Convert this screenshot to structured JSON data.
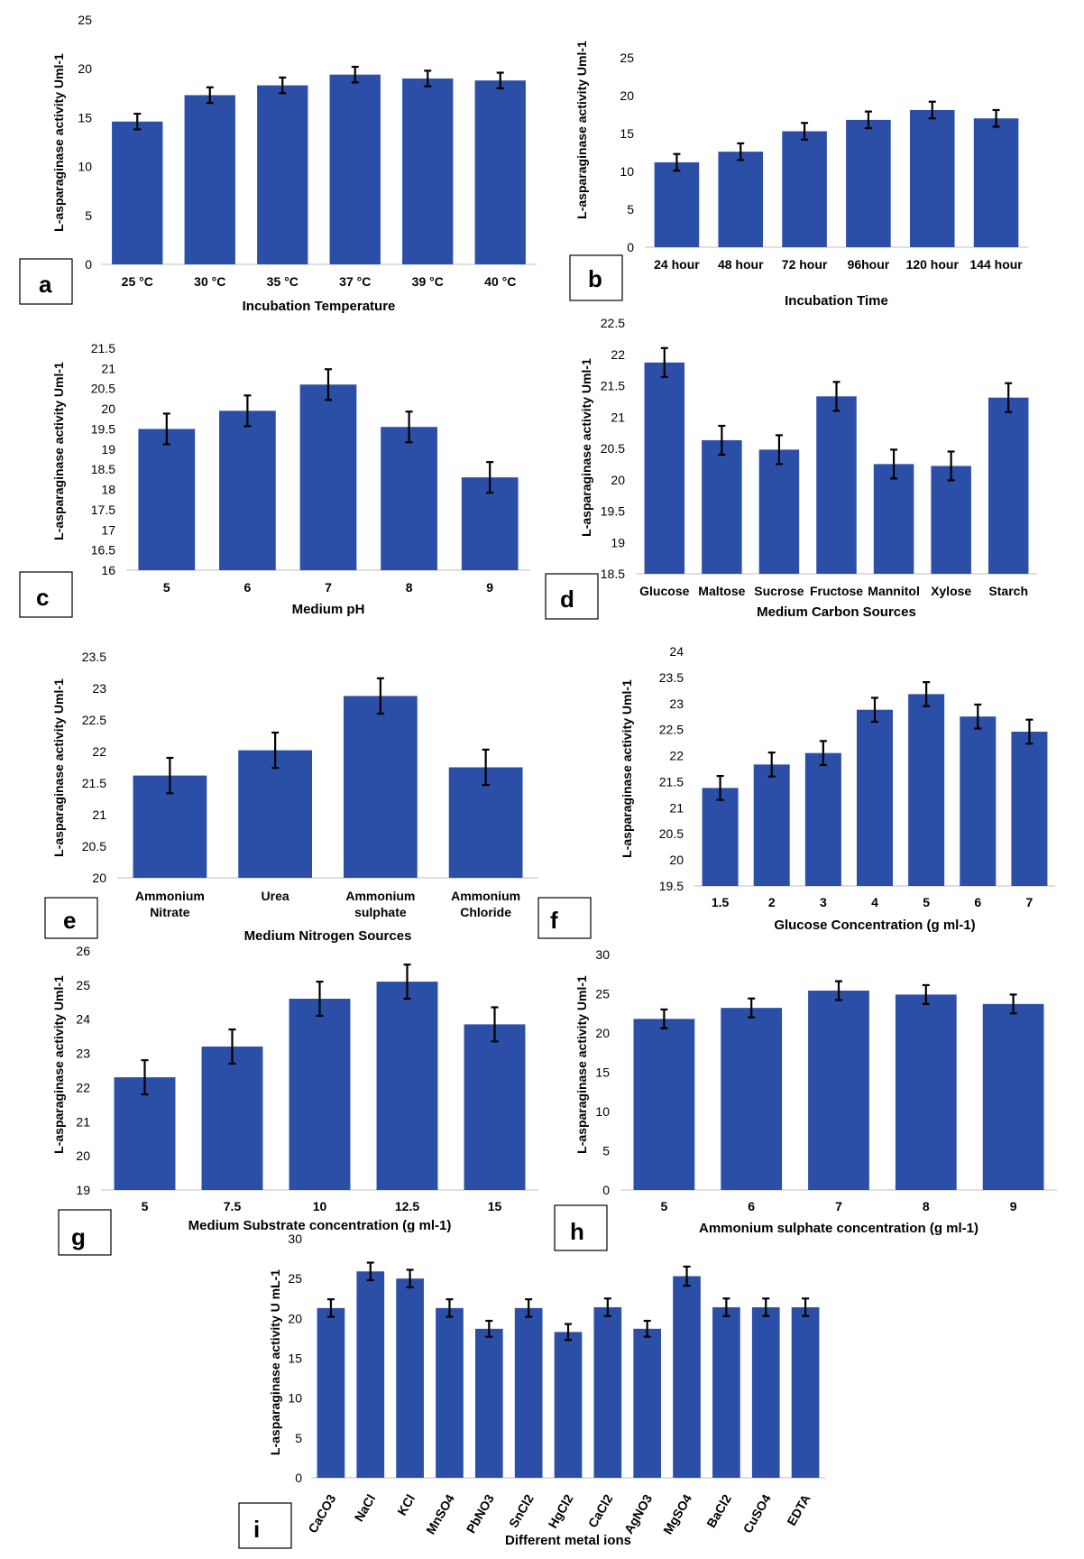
{
  "chart_data": [
    {
      "id": "a",
      "type": "bar",
      "panel_label": "a",
      "categories": [
        "25 °C",
        "30 °C",
        "35 °C",
        "37 °C",
        "39 °C",
        "40 °C"
      ],
      "values": [
        14.6,
        17.3,
        18.3,
        19.4,
        19.0,
        18.8
      ],
      "errors": [
        0.8,
        0.8,
        0.8,
        0.8,
        0.8,
        0.8
      ],
      "ylim": [
        0,
        25
      ],
      "yticks": [
        0,
        5,
        10,
        15,
        20,
        25
      ],
      "xlabel": "Incubation Temperature",
      "ylabel": "L-asparaginase activity Uml-1"
    },
    {
      "id": "b",
      "type": "bar",
      "panel_label": "b",
      "categories": [
        "24 hour",
        "48 hour",
        "72 hour",
        "96hour",
        "120 hour",
        "144 hour"
      ],
      "values": [
        11.2,
        12.6,
        15.3,
        16.8,
        18.1,
        17.0
      ],
      "errors": [
        1.1,
        1.1,
        1.1,
        1.1,
        1.1,
        1.1
      ],
      "ylim": [
        0,
        25
      ],
      "yticks": [
        0,
        5,
        10,
        15,
        20,
        25
      ],
      "xlabel": "Incubation Time",
      "ylabel": "L-asparaginase activity Uml-1"
    },
    {
      "id": "c",
      "type": "bar",
      "panel_label": "c",
      "categories": [
        "5",
        "6",
        "7",
        "8",
        "9"
      ],
      "values": [
        19.5,
        19.95,
        20.6,
        19.55,
        18.3
      ],
      "errors": [
        0.38,
        0.38,
        0.38,
        0.38,
        0.38
      ],
      "ylim": [
        16,
        21.5
      ],
      "yticks": [
        16,
        16.5,
        17,
        17.5,
        18,
        18.5,
        19,
        19.5,
        20,
        20.5,
        21,
        21.5
      ],
      "xlabel": "Medium pH",
      "ylabel": "L-asparaginase activity Uml-1"
    },
    {
      "id": "d",
      "type": "bar",
      "panel_label": "d",
      "categories": [
        "Glucose",
        "Maltose",
        "Sucrose",
        "Fructose",
        "Mannitol",
        "Xylose",
        "Starch"
      ],
      "values": [
        21.87,
        20.63,
        20.48,
        21.33,
        20.25,
        20.22,
        21.31
      ],
      "errors": [
        0.23,
        0.23,
        0.23,
        0.23,
        0.23,
        0.23,
        0.23
      ],
      "ylim": [
        18.5,
        22.5
      ],
      "yticks": [
        18.5,
        19,
        19.5,
        20,
        20.5,
        21,
        21.5,
        22,
        22.5
      ],
      "xlabel": "Medium Carbon Sources",
      "ylabel": "L-asparaginase activity Uml-1"
    },
    {
      "id": "e",
      "type": "bar",
      "panel_label": "e",
      "categories": [
        [
          "Ammonium",
          "Nitrate"
        ],
        [
          "Urea"
        ],
        [
          "Ammonium",
          "sulphate"
        ],
        [
          "Ammonium",
          "Chloride"
        ]
      ],
      "values": [
        21.62,
        22.02,
        22.88,
        21.75
      ],
      "errors": [
        0.28,
        0.28,
        0.28,
        0.28
      ],
      "ylim": [
        20,
        23.5
      ],
      "yticks": [
        20,
        20.5,
        21,
        21.5,
        22,
        22.5,
        23,
        23.5
      ],
      "xlabel": "Medium Nitrogen Sources",
      "ylabel": "L-asparaginase activity Uml-1"
    },
    {
      "id": "f",
      "type": "bar",
      "panel_label": "f",
      "categories": [
        "1.5",
        "2",
        "3",
        "4",
        "5",
        "6",
        "7"
      ],
      "values": [
        21.38,
        21.83,
        22.05,
        22.88,
        23.18,
        22.75,
        22.46
      ],
      "errors": [
        0.23,
        0.23,
        0.23,
        0.23,
        0.23,
        0.23,
        0.23
      ],
      "ylim": [
        19.5,
        24
      ],
      "yticks": [
        19.5,
        20,
        20.5,
        21,
        21.5,
        22,
        22.5,
        23,
        23.5,
        24
      ],
      "xlabel": "Glucose Concentration (g ml-1)",
      "ylabel": "L-asparaginase activity Uml-1"
    },
    {
      "id": "g",
      "type": "bar",
      "panel_label": "g",
      "categories": [
        "5",
        "7.5",
        "10",
        "12.5",
        "15"
      ],
      "values": [
        22.3,
        23.2,
        24.6,
        25.1,
        23.85
      ],
      "errors": [
        0.5,
        0.5,
        0.5,
        0.5,
        0.5
      ],
      "ylim": [
        19,
        26
      ],
      "yticks": [
        19,
        20,
        21,
        22,
        23,
        24,
        25,
        26
      ],
      "xlabel": "Medium Substrate concentration  (g ml-1)",
      "ylabel": "L-asparaginase activity Uml-1"
    },
    {
      "id": "h",
      "type": "bar",
      "panel_label": "h",
      "categories": [
        "5",
        "6",
        "7",
        "8",
        "9"
      ],
      "values": [
        21.8,
        23.2,
        25.4,
        24.9,
        23.7
      ],
      "errors": [
        1.2,
        1.2,
        1.2,
        1.2,
        1.2
      ],
      "ylim": [
        0,
        30
      ],
      "yticks": [
        0,
        5,
        10,
        15,
        20,
        25,
        30
      ],
      "xlabel": "Ammonium sulphate concentration (g ml-1)",
      "ylabel": "L-asparaginase activity Uml-1"
    },
    {
      "id": "i",
      "type": "bar",
      "panel_label": "i",
      "categories": [
        "CaCO3",
        "NaCl",
        "KCl",
        "MnSO4",
        "PbNO3",
        "SnCl2",
        "HgCl2",
        "CaCl2",
        "AgNO3",
        "MgSO4",
        "BaCl2",
        "CuSO4",
        "EDTA"
      ],
      "values": [
        21.3,
        25.9,
        25.0,
        21.3,
        18.7,
        21.3,
        18.3,
        21.4,
        18.7,
        25.3,
        21.4,
        21.4,
        21.4
      ],
      "errors": [
        1.1,
        1.1,
        1.1,
        1.1,
        1.0,
        1.1,
        1.0,
        1.1,
        1.0,
        1.2,
        1.1,
        1.1,
        1.1
      ],
      "ylim": [
        0,
        30
      ],
      "yticks": [
        0,
        5,
        10,
        15,
        20,
        25,
        30
      ],
      "xlabel": "Different metal ions",
      "ylabel": "L-asparaginase activity U mL-1"
    }
  ],
  "colors": {
    "bar": "#2b4ea6",
    "error_bar": "#000000",
    "axis": "#bfbfbf"
  }
}
